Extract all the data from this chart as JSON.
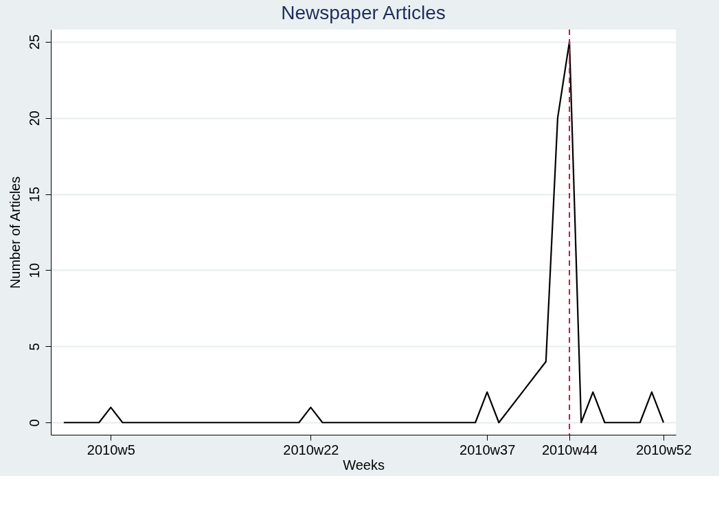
{
  "chart_data": {
    "type": "line",
    "title": "Newspaper Articles",
    "xlabel": "Weeks",
    "ylabel": "Number of Articles",
    "categories": [
      null,
      null,
      null,
      null,
      "2010w5",
      null,
      null,
      null,
      null,
      null,
      null,
      null,
      null,
      null,
      null,
      null,
      null,
      null,
      null,
      null,
      null,
      "2010w22",
      null,
      null,
      null,
      null,
      null,
      null,
      null,
      null,
      null,
      null,
      null,
      null,
      null,
      null,
      "2010w37",
      null,
      null,
      null,
      null,
      null,
      null,
      "2010w44",
      null,
      null,
      null,
      null,
      null,
      null,
      null,
      "2010w52"
    ],
    "series": [
      {
        "color": "#000000",
        "values": [
          0,
          0,
          0,
          0,
          1,
          0,
          0,
          0,
          0,
          0,
          0,
          0,
          0,
          0,
          0,
          0,
          0,
          0,
          0,
          0,
          0,
          1,
          0,
          0,
          0,
          0,
          0,
          0,
          0,
          0,
          0,
          0,
          0,
          0,
          0,
          0,
          2,
          0,
          null,
          null,
          null,
          4,
          20,
          25,
          0,
          2,
          0,
          0,
          0,
          0,
          2,
          0
        ]
      }
    ],
    "ylim": [
      -0.8,
      25.8
    ],
    "yticks": [
      0,
      5,
      10,
      15,
      20,
      25
    ],
    "grid": "y",
    "line_style": "solid",
    "ref_lines": [
      {
        "axis": "x",
        "value": "2010w44",
        "color": "#d0103a",
        "line_style": "dashed"
      }
    ]
  }
}
